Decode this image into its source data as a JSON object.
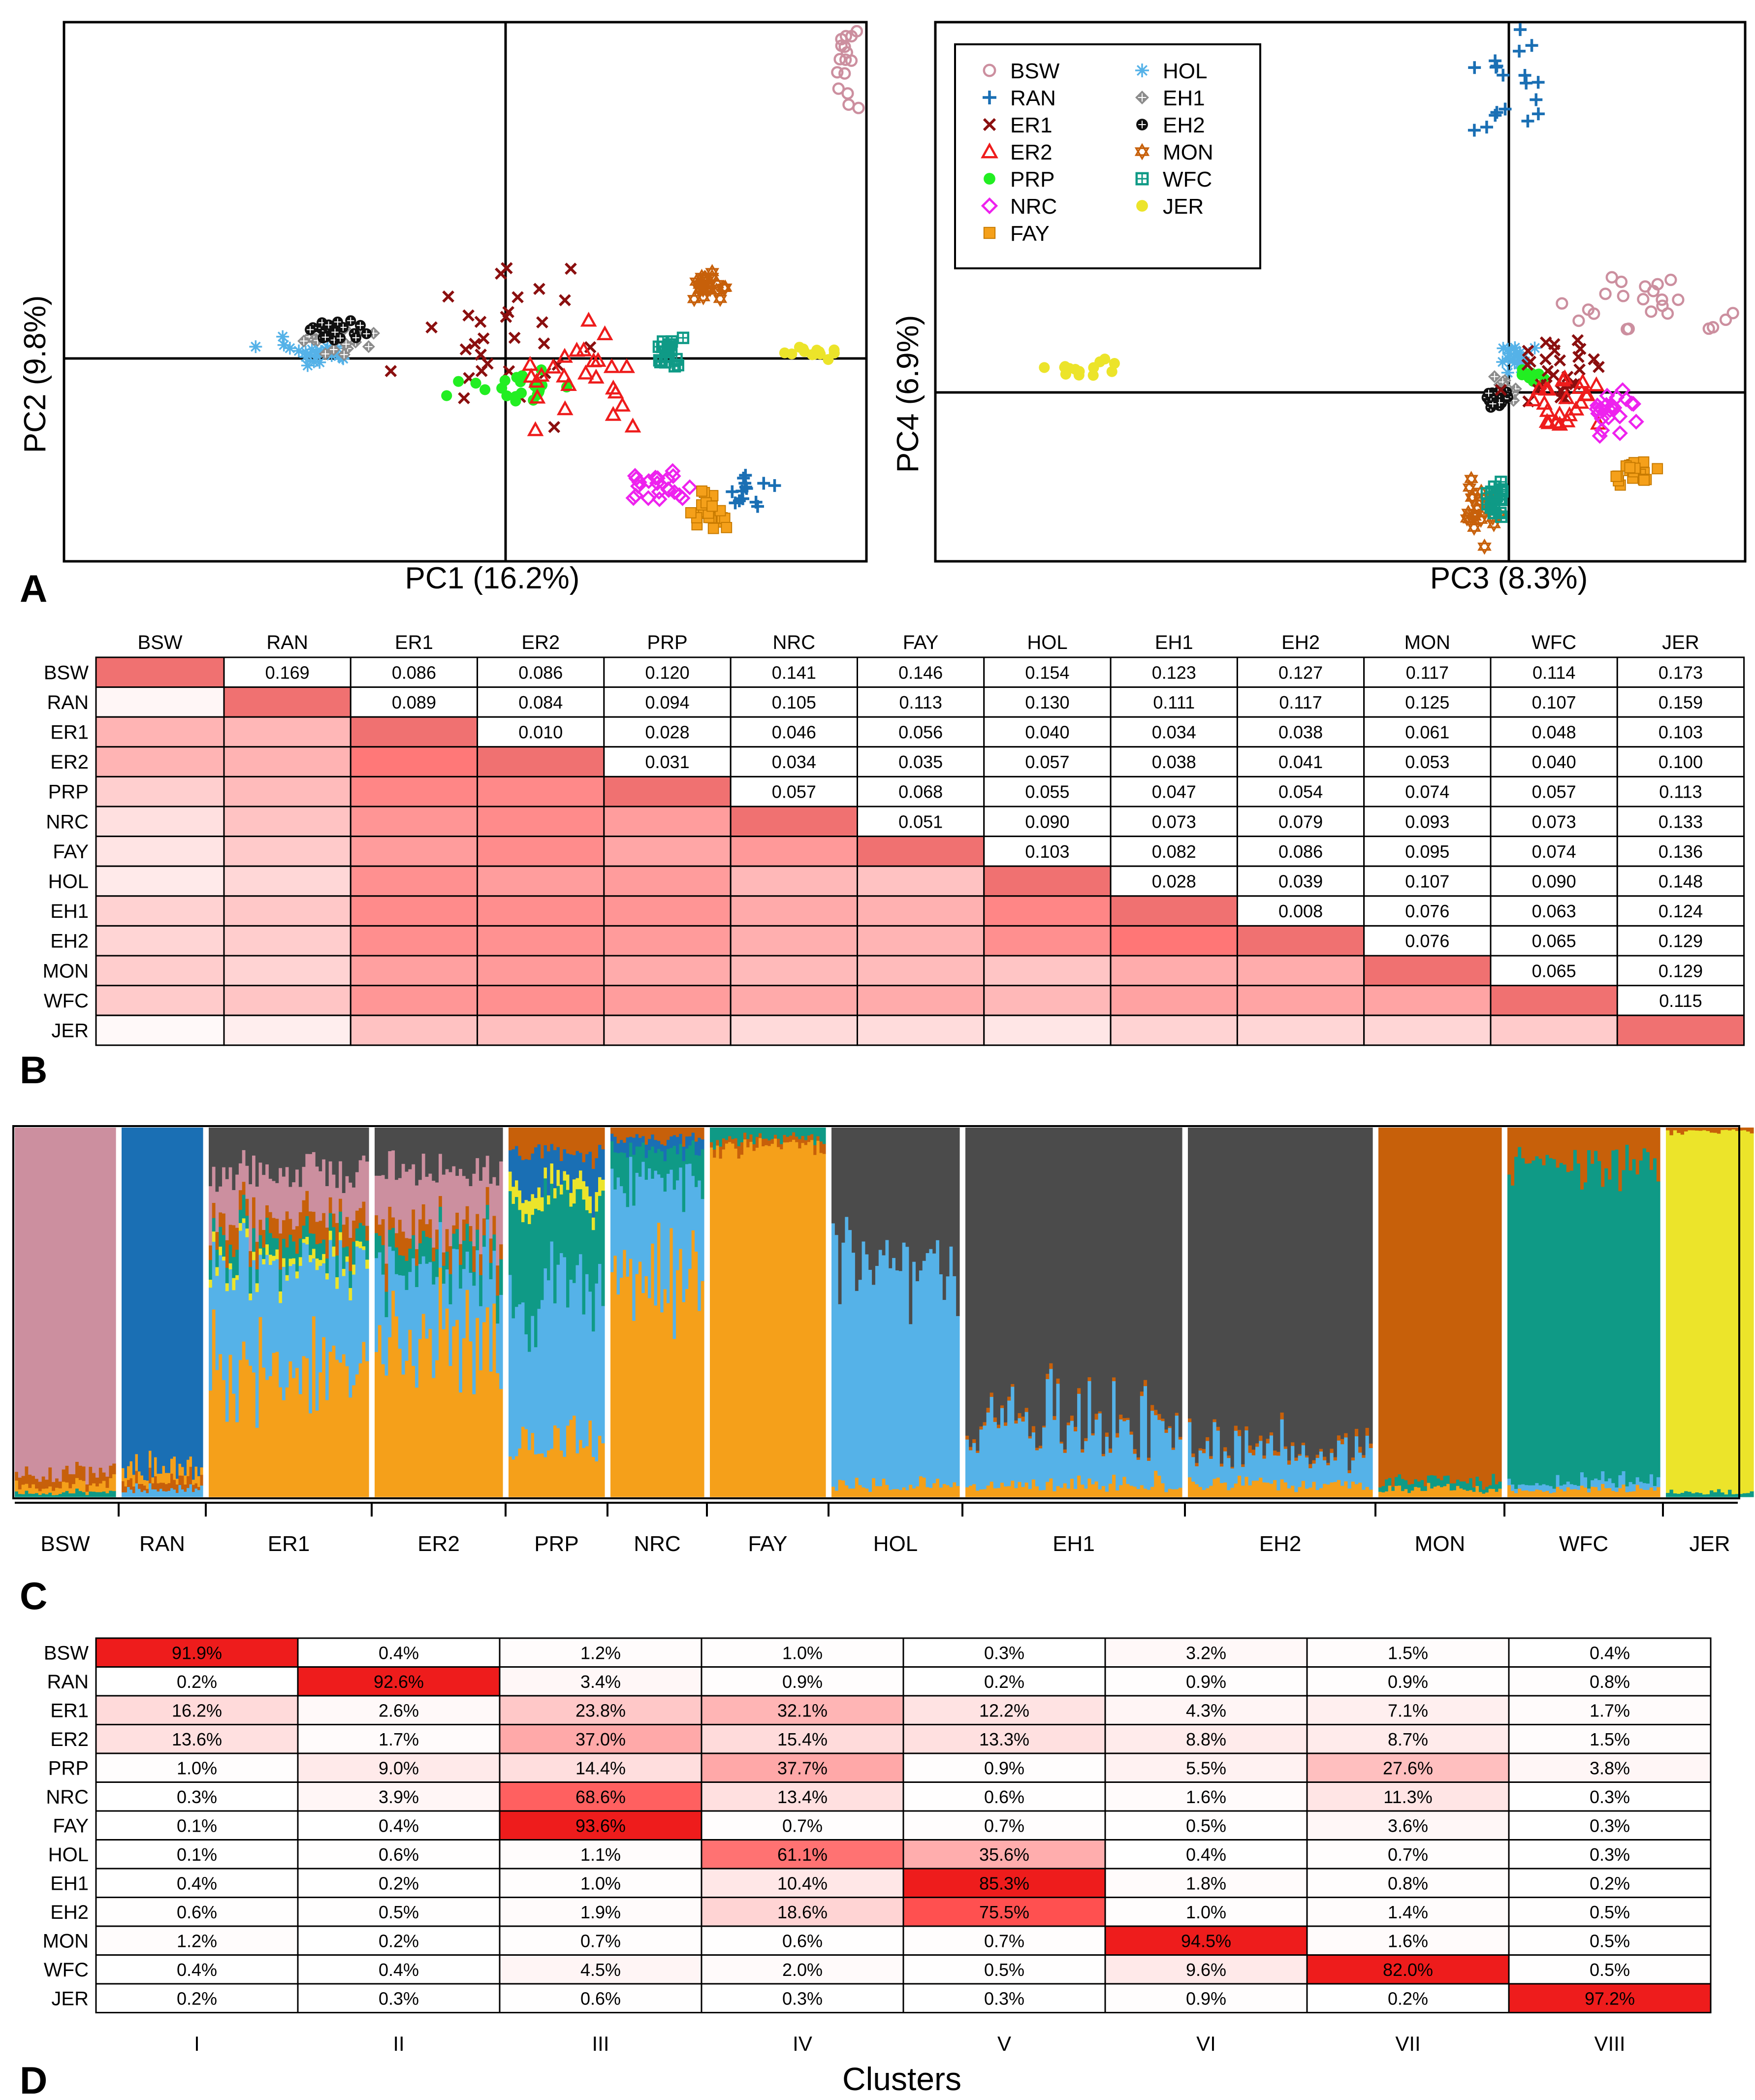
{
  "panel_labels": [
    "A",
    "B",
    "C",
    "D"
  ],
  "colors": {
    "BSW": "#cc8f9f",
    "RAN": "#1a6fb4",
    "ER1": "#8b0f0f",
    "ER2": "#ee1c1c",
    "PRP": "#22ee22",
    "NRC": "#ee22ee",
    "FAY": "#f5a01a",
    "HOL": "#55b2e8",
    "EH1": "#8c8c8c",
    "EH2": "#101010",
    "MON": "#c7600a",
    "WFC": "#0f9a86",
    "JER": "#ece42a",
    "admix_grey": "#4b4b4b"
  },
  "chart_data": [
    {
      "type": "scatter",
      "panel": "A-left",
      "xlabel": "PC1 (16.2%)",
      "ylabel": "PC2 (9.8%)",
      "xlim": [
        -1,
        1
      ],
      "ylim": [
        -1,
        1
      ],
      "clusters": [
        {
          "pop": "HOL",
          "symbol": "asterisk",
          "x": -0.68,
          "y": 0.02,
          "sx": 0.08,
          "sy": 0.03,
          "n": 24
        },
        {
          "pop": "EH1",
          "symbol": "diamond-plus",
          "x": -0.63,
          "y": 0.08,
          "sx": 0.07,
          "sy": 0.03,
          "n": 22
        },
        {
          "pop": "EH2",
          "symbol": "circle-plus",
          "x": -0.58,
          "y": 0.11,
          "sx": 0.06,
          "sy": 0.02,
          "n": 22
        },
        {
          "pop": "ER1",
          "symbol": "x",
          "x": -0.05,
          "y": 0.1,
          "sx": 0.17,
          "sy": 0.15,
          "n": 30
        },
        {
          "pop": "PRP",
          "symbol": "dot",
          "x": 0.05,
          "y": -0.12,
          "sx": 0.1,
          "sy": 0.03,
          "n": 22
        },
        {
          "pop": "ER2",
          "symbol": "triangle",
          "x": 0.25,
          "y": -0.06,
          "sx": 0.13,
          "sy": 0.1,
          "n": 26
        },
        {
          "pop": "WFC",
          "symbol": "square-plus",
          "x": 0.6,
          "y": 0.01,
          "sx": 0.03,
          "sy": 0.03,
          "n": 20
        },
        {
          "pop": "MON",
          "symbol": "star",
          "x": 0.72,
          "y": 0.29,
          "sx": 0.03,
          "sy": 0.03,
          "n": 22
        },
        {
          "pop": "JER",
          "symbol": "dot",
          "x": 1.12,
          "y": 0.02,
          "sx": 0.05,
          "sy": 0.01,
          "n": 14
        },
        {
          "pop": "NRC",
          "symbol": "diamond",
          "x": 0.55,
          "y": -0.51,
          "sx": 0.06,
          "sy": 0.04,
          "n": 22
        },
        {
          "pop": "FAY",
          "symbol": "square",
          "x": 0.72,
          "y": -0.63,
          "sx": 0.04,
          "sy": 0.04,
          "n": 24
        },
        {
          "pop": "RAN",
          "symbol": "plus",
          "x": 0.88,
          "y": -0.54,
          "sx": 0.04,
          "sy": 0.04,
          "n": 14
        },
        {
          "pop": "BSW",
          "symbol": "open-circle",
          "x": 1.22,
          "y": 1.25,
          "sx": 0.03,
          "sy": 0.12,
          "n": 24
        }
      ]
    },
    {
      "type": "scatter",
      "panel": "A-right",
      "xlabel": "PC3 (8.3%)",
      "ylabel": "PC4 (6.9%)",
      "xlim": [
        -1,
        1
      ],
      "ylim": [
        -1,
        1
      ],
      "legend": {
        "position": "top-left",
        "entries": [
          {
            "label": "BSW",
            "symbol": "open-circle"
          },
          {
            "label": "RAN",
            "symbol": "plus"
          },
          {
            "label": "ER1",
            "symbol": "x"
          },
          {
            "label": "ER2",
            "symbol": "triangle"
          },
          {
            "label": "PRP",
            "symbol": "dot"
          },
          {
            "label": "NRC",
            "symbol": "diamond"
          },
          {
            "label": "FAY",
            "symbol": "square"
          },
          {
            "label": "HOL",
            "symbol": "asterisk"
          },
          {
            "label": "EH1",
            "symbol": "diamond-plus"
          },
          {
            "label": "EH2",
            "symbol": "circle-plus"
          },
          {
            "label": "MON",
            "symbol": "star"
          },
          {
            "label": "WFC",
            "symbol": "square-plus"
          },
          {
            "label": "JER",
            "symbol": "dot"
          }
        ]
      },
      "clusters": [
        {
          "pop": "JER",
          "symbol": "dot",
          "x": -1.6,
          "y": 0.09,
          "sx": 0.09,
          "sy": 0.02,
          "n": 14
        },
        {
          "pop": "HOL",
          "symbol": "asterisk",
          "x": 0.02,
          "y": 0.12,
          "sx": 0.03,
          "sy": 0.03,
          "n": 20
        },
        {
          "pop": "EH1",
          "symbol": "diamond-plus",
          "x": -0.03,
          "y": 0.0,
          "sx": 0.03,
          "sy": 0.03,
          "n": 20
        },
        {
          "pop": "EH2",
          "symbol": "circle-plus",
          "x": -0.04,
          "y": -0.03,
          "sx": 0.02,
          "sy": 0.02,
          "n": 20
        },
        {
          "pop": "PRP",
          "symbol": "dot",
          "x": 0.08,
          "y": 0.06,
          "sx": 0.02,
          "sy": 0.02,
          "n": 8
        },
        {
          "pop": "ER1",
          "symbol": "x",
          "x": 0.18,
          "y": 0.08,
          "sx": 0.09,
          "sy": 0.06,
          "n": 28
        },
        {
          "pop": "ER2",
          "symbol": "triangle",
          "x": 0.2,
          "y": -0.03,
          "sx": 0.08,
          "sy": 0.06,
          "n": 24
        },
        {
          "pop": "NRC",
          "symbol": "diamond",
          "x": 0.37,
          "y": -0.07,
          "sx": 0.04,
          "sy": 0.04,
          "n": 22
        },
        {
          "pop": "FAY",
          "symbol": "square",
          "x": 0.45,
          "y": -0.3,
          "sx": 0.04,
          "sy": 0.03,
          "n": 22
        },
        {
          "pop": "BSW",
          "symbol": "open-circle",
          "x": 0.55,
          "y": 0.34,
          "sx": 0.15,
          "sy": 0.06,
          "n": 24
        },
        {
          "pop": "RAN",
          "symbol": "plus",
          "x": 0.0,
          "y": 1.2,
          "sx": 0.05,
          "sy": 0.16,
          "n": 24
        },
        {
          "pop": "MON",
          "symbol": "star",
          "x": -0.1,
          "y": -0.45,
          "sx": 0.03,
          "sy": 0.07,
          "n": 22
        },
        {
          "pop": "WFC",
          "symbol": "square-plus",
          "x": -0.04,
          "y": -0.39,
          "sx": 0.02,
          "sy": 0.05,
          "n": 20
        }
      ]
    },
    {
      "type": "heatmap",
      "panel": "B",
      "pops": [
        "BSW",
        "RAN",
        "ER1",
        "ER2",
        "PRP",
        "NRC",
        "FAY",
        "HOL",
        "EH1",
        "EH2",
        "MON",
        "WFC",
        "JER"
      ],
      "upper_values": [
        [
          "",
          "0.169",
          "0.086",
          "0.086",
          "0.120",
          "0.141",
          "0.146",
          "0.154",
          "0.123",
          "0.127",
          "0.117",
          "0.114",
          "0.173"
        ],
        [
          "",
          "",
          "0.089",
          "0.084",
          "0.094",
          "0.105",
          "0.113",
          "0.130",
          "0.111",
          "0.117",
          "0.125",
          "0.107",
          "0.159"
        ],
        [
          "",
          "",
          "",
          "0.010",
          "0.028",
          "0.046",
          "0.056",
          "0.040",
          "0.034",
          "0.038",
          "0.061",
          "0.048",
          "0.103"
        ],
        [
          "",
          "",
          "",
          "",
          "0.031",
          "0.034",
          "0.035",
          "0.057",
          "0.038",
          "0.041",
          "0.053",
          "0.040",
          "0.100"
        ],
        [
          "",
          "",
          "",
          "",
          "",
          "0.057",
          "0.068",
          "0.055",
          "0.047",
          "0.054",
          "0.074",
          "0.057",
          "0.113"
        ],
        [
          "",
          "",
          "",
          "",
          "",
          "",
          "0.051",
          "0.090",
          "0.073",
          "0.079",
          "0.093",
          "0.073",
          "0.133"
        ],
        [
          "",
          "",
          "",
          "",
          "",
          "",
          "",
          "0.103",
          "0.082",
          "0.086",
          "0.095",
          "0.074",
          "0.136"
        ],
        [
          "",
          "",
          "",
          "",
          "",
          "",
          "",
          "",
          "0.028",
          "0.039",
          "0.107",
          "0.090",
          "0.148"
        ],
        [
          "",
          "",
          "",
          "",
          "",
          "",
          "",
          "",
          "",
          "0.008",
          "0.076",
          "0.063",
          "0.124"
        ],
        [
          "",
          "",
          "",
          "",
          "",
          "",
          "",
          "",
          "",
          "",
          "0.076",
          "0.065",
          "0.129"
        ],
        [
          "",
          "",
          "",
          "",
          "",
          "",
          "",
          "",
          "",
          "",
          "",
          "0.065",
          "0.129"
        ],
        [
          "",
          "",
          "",
          "",
          "",
          "",
          "",
          "",
          "",
          "",
          "",
          "",
          "0.115"
        ],
        [
          "",
          "",
          "",
          "",
          "",
          "",
          "",
          "",
          "",
          "",
          "",
          "",
          ""
        ]
      ]
    },
    {
      "type": "bar",
      "panel": "C",
      "stacked": true,
      "categories": [
        "BSW",
        "RAN",
        "ER1",
        "ER2",
        "PRP",
        "NRC",
        "FAY",
        "HOL",
        "EH1",
        "EH2",
        "MON",
        "WFC",
        "JER"
      ],
      "bar_counts": [
        30,
        30,
        48,
        38,
        30,
        30,
        38,
        38,
        62,
        52,
        38,
        44,
        24
      ]
    },
    {
      "type": "heatmap",
      "panel": "D",
      "pops": [
        "BSW",
        "RAN",
        "ER1",
        "ER2",
        "PRP",
        "NRC",
        "FAY",
        "HOL",
        "EH1",
        "EH2",
        "MON",
        "WFC",
        "JER"
      ],
      "clusters": [
        "I",
        "II",
        "III",
        "IV",
        "V",
        "VI",
        "VII",
        "VIII"
      ],
      "xlabel": "Clusters",
      "values": [
        [
          "91.9%",
          "0.4%",
          "1.2%",
          "1.0%",
          "0.3%",
          "3.2%",
          "1.5%",
          "0.4%"
        ],
        [
          "0.2%",
          "92.6%",
          "3.4%",
          "0.9%",
          "0.2%",
          "0.9%",
          "0.9%",
          "0.8%"
        ],
        [
          "16.2%",
          "2.6%",
          "23.8%",
          "32.1%",
          "12.2%",
          "4.3%",
          "7.1%",
          "1.7%"
        ],
        [
          "13.6%",
          "1.7%",
          "37.0%",
          "15.4%",
          "13.3%",
          "8.8%",
          "8.7%",
          "1.5%"
        ],
        [
          "1.0%",
          "9.0%",
          "14.4%",
          "37.7%",
          "0.9%",
          "5.5%",
          "27.6%",
          "3.8%"
        ],
        [
          "0.3%",
          "3.9%",
          "68.6%",
          "13.4%",
          "0.6%",
          "1.6%",
          "11.3%",
          "0.3%"
        ],
        [
          "0.1%",
          "0.4%",
          "93.6%",
          "0.7%",
          "0.7%",
          "0.5%",
          "3.6%",
          "0.3%"
        ],
        [
          "0.1%",
          "0.6%",
          "1.1%",
          "61.1%",
          "35.6%",
          "0.4%",
          "0.7%",
          "0.3%"
        ],
        [
          "0.4%",
          "0.2%",
          "1.0%",
          "10.4%",
          "85.3%",
          "1.8%",
          "0.8%",
          "0.2%"
        ],
        [
          "0.6%",
          "0.5%",
          "1.9%",
          "18.6%",
          "75.5%",
          "1.0%",
          "1.4%",
          "0.5%"
        ],
        [
          "1.2%",
          "0.2%",
          "0.7%",
          "0.6%",
          "0.7%",
          "94.5%",
          "1.6%",
          "0.5%"
        ],
        [
          "0.4%",
          "0.4%",
          "4.5%",
          "2.0%",
          "0.5%",
          "9.6%",
          "82.0%",
          "0.5%"
        ],
        [
          "0.2%",
          "0.3%",
          "0.6%",
          "0.3%",
          "0.3%",
          "0.9%",
          "0.2%",
          "97.2%"
        ]
      ]
    }
  ]
}
